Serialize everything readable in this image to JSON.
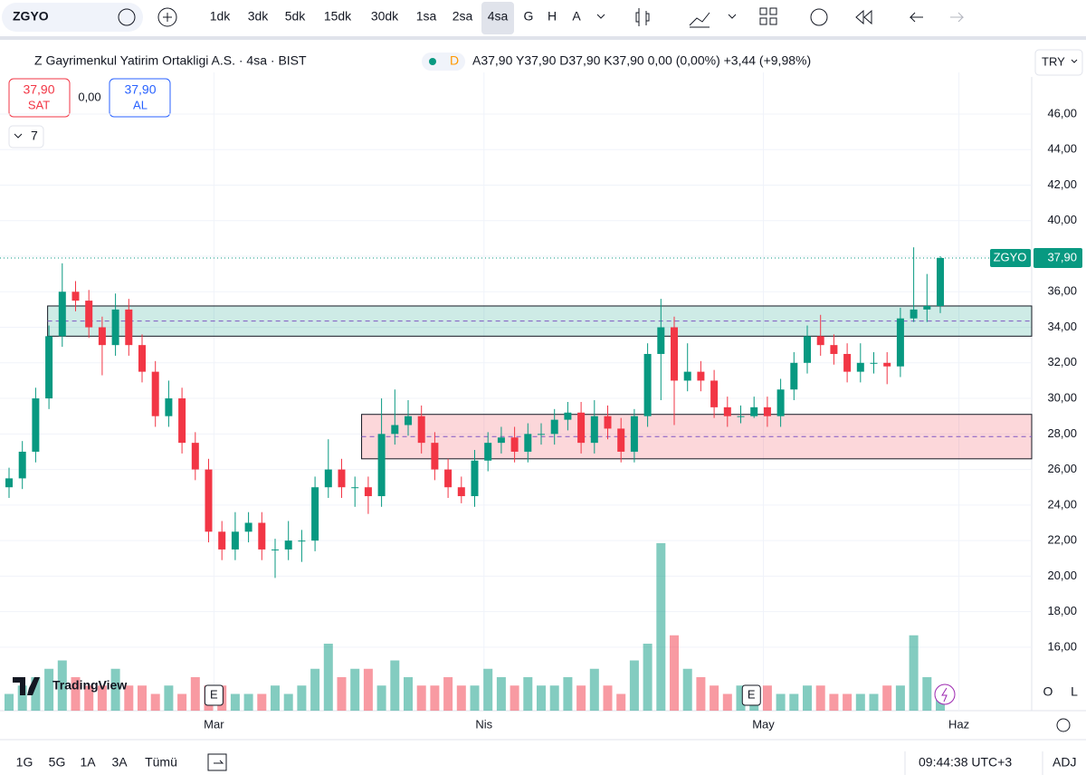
{
  "toolbar": {
    "symbol": "ZGYO",
    "intervals": [
      "1dk",
      "3dk",
      "5dk",
      "15dk",
      "30dk",
      "1sa",
      "2sa",
      "4sa",
      "G",
      "H",
      "A"
    ],
    "active_interval": "4sa"
  },
  "header": {
    "title": "Z Gayrimenkul Yatirim Ortakligi A.S. · 4sa · BIST",
    "badge": "D",
    "ohlc": "A37,90 Y37,90 D37,90 K37,90 0,00 (0,00%) +3,44 (+9,98%)",
    "sell_price": "37,90",
    "sell": "SAT",
    "spread": "0,00",
    "buy_price": "37,90",
    "buy": "AL",
    "indicators": "7",
    "currency": "TRY"
  },
  "chart_data": {
    "type": "candlestick",
    "symbol": "ZGYO",
    "open": [
      25,
      25.5,
      27,
      30,
      33.5,
      36,
      35.5,
      34,
      33,
      35,
      33,
      31.5,
      29,
      30,
      27.5,
      26,
      22.5,
      21.5,
      22.5,
      23,
      21.5,
      21.5,
      22,
      22,
      25,
      26,
      25,
      25,
      24.5,
      28,
      28.5,
      29,
      27.5,
      26,
      25,
      24.5,
      26.5,
      27.5,
      27.8,
      27,
      28,
      28,
      28.8,
      29.2,
      27.5,
      29,
      28.3,
      27,
      29,
      32.5,
      34,
      31,
      31.5,
      31,
      29.5,
      29,
      29,
      29.5,
      29,
      30.5,
      32,
      33.5,
      33,
      32.5,
      31.5,
      32,
      32,
      31.8,
      34.5,
      35,
      35.2
    ],
    "high": [
      26.1,
      27.6,
      30.6,
      34.1,
      37.6,
      36.6,
      36.1,
      34.6,
      35.9,
      35.6,
      33.6,
      32.1,
      31,
      30.6,
      28.1,
      26.6,
      23.1,
      23.6,
      23.6,
      23.6,
      22.1,
      23.1,
      22.6,
      25.6,
      27.7,
      26.6,
      25.6,
      25.6,
      30,
      30.5,
      29.9,
      29.6,
      28.1,
      26.6,
      25.6,
      27.1,
      28.1,
      28.4,
      28.4,
      28.6,
      28.6,
      29.4,
      29.8,
      29.8,
      29.9,
      29.6,
      28.9,
      29.4,
      33.1,
      35.6,
      34.6,
      33.1,
      32.1,
      31.6,
      30.1,
      29.6,
      30.1,
      30.1,
      31.1,
      32.6,
      34.1,
      34.7,
      33.6,
      33.1,
      33.1,
      32.6,
      32.6,
      35.1,
      38.5,
      37,
      38
    ],
    "low": [
      24.4,
      24.9,
      26.4,
      29.4,
      32.9,
      34.9,
      33.4,
      31.3,
      32.4,
      32.4,
      30.9,
      28.4,
      28.4,
      26.9,
      25.4,
      21.9,
      20.9,
      20.9,
      21.9,
      20.9,
      19.9,
      20.9,
      20.8,
      21.4,
      24.4,
      24.4,
      23.9,
      23.5,
      23.9,
      27.4,
      27.9,
      26.9,
      25.4,
      24.4,
      24.1,
      23.9,
      25.9,
      26.9,
      26.4,
      26.4,
      27.4,
      27.4,
      28.2,
      26.9,
      26.9,
      27.7,
      26.4,
      26.4,
      28.4,
      29.9,
      28.5,
      30.4,
      30.4,
      28.9,
      28.4,
      28.6,
      28.9,
      28.4,
      28.4,
      29.9,
      31.4,
      32.4,
      31.9,
      30.9,
      30.9,
      31.4,
      30.8,
      31.2,
      34.3,
      34.3,
      34.8
    ],
    "close": [
      25.5,
      27,
      30,
      33.5,
      36,
      35.5,
      34,
      33,
      35,
      33,
      31.5,
      29,
      30,
      27.5,
      26,
      22.5,
      21.5,
      22.5,
      23,
      21.5,
      21.5,
      22,
      22,
      25,
      26,
      25,
      25,
      24.5,
      28,
      28.5,
      29,
      27.5,
      26,
      25,
      24.5,
      26.5,
      27.5,
      27.8,
      27,
      28,
      28,
      28.8,
      29.2,
      27.5,
      29,
      28.3,
      27,
      29,
      32.5,
      34,
      31,
      31.5,
      31,
      29.5,
      29,
      29,
      29.5,
      29,
      30.5,
      32,
      33.5,
      33,
      32.5,
      31.5,
      32,
      32,
      31.8,
      34.5,
      35,
      35.2,
      37.9
    ],
    "volume": [
      2,
      3,
      4,
      5,
      6,
      4,
      3,
      3,
      5,
      3,
      3,
      2,
      3,
      2,
      4,
      3,
      3,
      2,
      2,
      2,
      3,
      2,
      3,
      5,
      8,
      4,
      5,
      5,
      3,
      6,
      4,
      3,
      3,
      4,
      3,
      3,
      5,
      4,
      3,
      4,
      3,
      3,
      4,
      3,
      5,
      3,
      2,
      6,
      8,
      20,
      9,
      5,
      4,
      3,
      2,
      3,
      2,
      3,
      2,
      2,
      3,
      3,
      2,
      2,
      2,
      2,
      3,
      3,
      9,
      4,
      2
    ],
    "up_color": "#089981",
    "down_color": "#f23645",
    "xlim": [
      -0.68,
      76.87
    ],
    "xticks": [
      {
        "value": 15.4,
        "label": "Mar"
      },
      {
        "value": 35.7,
        "label": "Nis"
      },
      {
        "value": 56.7,
        "label": "May"
      },
      {
        "value": 71.4,
        "label": "Haz"
      }
    ],
    "ylim": [
      12.43,
      48.34
    ],
    "yticks": [
      {
        "value": 16,
        "label": "16,00"
      },
      {
        "value": 18,
        "label": "18,00"
      },
      {
        "value": 20,
        "label": "20,00"
      },
      {
        "value": 22,
        "label": "22,00"
      },
      {
        "value": 24,
        "label": "24,00"
      },
      {
        "value": 26,
        "label": "26,00"
      },
      {
        "value": 28,
        "label": "28,00"
      },
      {
        "value": 30,
        "label": "30,00"
      },
      {
        "value": 32,
        "label": "32,00"
      },
      {
        "value": 34,
        "label": "34,00"
      },
      {
        "value": 36,
        "label": "36,00"
      },
      {
        "value": 38,
        "label": "38,00"
      },
      {
        "value": 40,
        "label": "40,00"
      },
      {
        "value": 42,
        "label": "42,00"
      },
      {
        "value": 44,
        "label": "44,00"
      },
      {
        "value": 46,
        "label": "46,00"
      }
    ],
    "grid": true,
    "zones": [
      {
        "start": 2.9,
        "low": 33.5,
        "high": 35.2,
        "mid": 34.35,
        "color": "#089981"
      },
      {
        "start": 26.5,
        "low": 26.6,
        "high": 29.1,
        "mid": 27.85,
        "color": "#f23645"
      }
    ],
    "last_price": {
      "value": 37.9,
      "label": "37,90"
    },
    "events": [
      {
        "value": 15.4,
        "label": "E"
      },
      {
        "value": 55.8,
        "label": "E"
      }
    ],
    "watermark": "TradingView"
  },
  "side": {
    "o": "O",
    "l": "L"
  },
  "footer": {
    "ranges": [
      "1G",
      "5G",
      "1A",
      "3A",
      "Tümü"
    ],
    "clock": "09:44:38 UTC+3",
    "adj": "ADJ"
  }
}
